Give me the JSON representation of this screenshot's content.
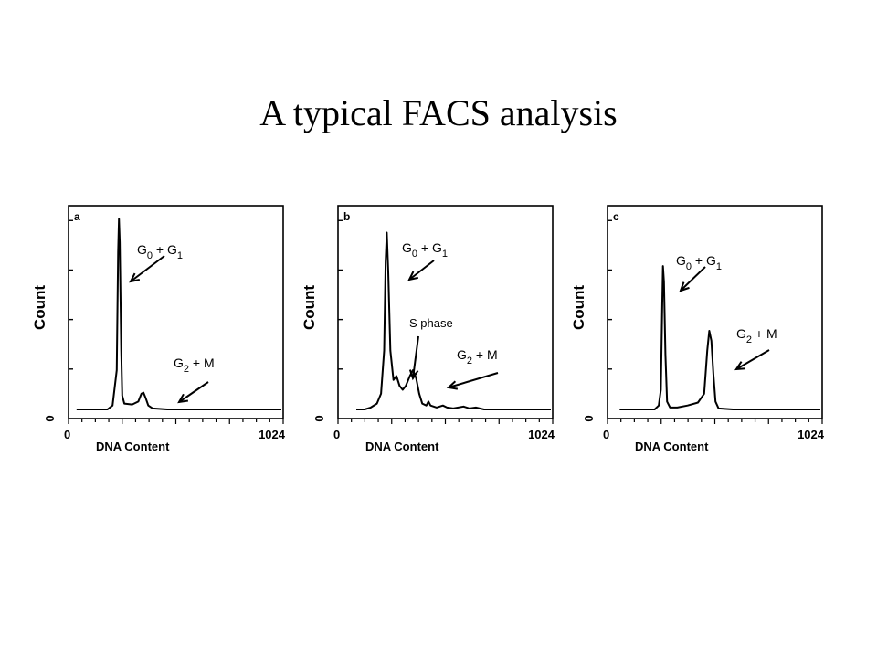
{
  "slide": {
    "title": "A typical FACS analysis"
  },
  "chart_data": [
    {
      "type": "line",
      "panel": "a",
      "xlabel": "DNA Content",
      "ylabel": "Count",
      "x_ticks": [
        "0",
        "1024"
      ],
      "y_ticks": [
        "0"
      ],
      "xlim": [
        0,
        1024
      ],
      "ylim": [
        0,
        100
      ],
      "points": [
        [
          30,
          0
        ],
        [
          180,
          0
        ],
        [
          205,
          2
        ],
        [
          225,
          20
        ],
        [
          232,
          80
        ],
        [
          236,
          97
        ],
        [
          240,
          85
        ],
        [
          247,
          30
        ],
        [
          252,
          7
        ],
        [
          262,
          3
        ],
        [
          300,
          2.5
        ],
        [
          330,
          4
        ],
        [
          345,
          8
        ],
        [
          355,
          8.5
        ],
        [
          365,
          6
        ],
        [
          378,
          2
        ],
        [
          400,
          0.5
        ],
        [
          470,
          0
        ],
        [
          1024,
          0
        ]
      ],
      "annotations": [
        {
          "text": "G",
          "sub": "0",
          "rest": " + G",
          "sub2": "1",
          "tx": 300,
          "ty": 73
        },
        {
          "text": "G",
          "sub": "2",
          "rest": " + M",
          "tx": 380,
          "ty": 19
        }
      ]
    },
    {
      "type": "line",
      "panel": "b",
      "xlabel": "DNA Content",
      "ylabel": "Count",
      "x_ticks": [
        "0",
        "1024"
      ],
      "y_ticks": [
        "0"
      ],
      "xlim": [
        0,
        1024
      ],
      "ylim": [
        0,
        100
      ],
      "points": [
        [
          80,
          0
        ],
        [
          120,
          0
        ],
        [
          150,
          1
        ],
        [
          180,
          3
        ],
        [
          200,
          8
        ],
        [
          215,
          30
        ],
        [
          222,
          75
        ],
        [
          228,
          90
        ],
        [
          235,
          70
        ],
        [
          245,
          30
        ],
        [
          260,
          15
        ],
        [
          275,
          17
        ],
        [
          290,
          12
        ],
        [
          305,
          10
        ],
        [
          320,
          12
        ],
        [
          340,
          17
        ],
        [
          355,
          20
        ],
        [
          370,
          16
        ],
        [
          385,
          8
        ],
        [
          400,
          3
        ],
        [
          420,
          2
        ],
        [
          430,
          4
        ],
        [
          440,
          2
        ],
        [
          470,
          1
        ],
        [
          500,
          2
        ],
        [
          520,
          1
        ],
        [
          550,
          0.5
        ],
        [
          600,
          1.5
        ],
        [
          630,
          0.5
        ],
        [
          660,
          1
        ],
        [
          700,
          0
        ],
        [
          1024,
          0
        ]
      ],
      "annotations": [
        {
          "text": "G",
          "sub": "0",
          "rest": " + G",
          "sub2": "1",
          "tx": 300,
          "ty": 76
        },
        {
          "text": "S phase",
          "tx": 300,
          "ty": 38
        },
        {
          "text": "G",
          "sub": "2",
          "rest": " + M",
          "tx": 540,
          "ty": 25
        }
      ]
    },
    {
      "type": "line",
      "panel": "c",
      "xlabel": "DNA Content",
      "ylabel": "Count",
      "x_ticks": [
        "0",
        "1024"
      ],
      "y_ticks": [
        "0"
      ],
      "xlim": [
        0,
        1024
      ],
      "ylim": [
        0,
        100
      ],
      "points": [
        [
          50,
          0
        ],
        [
          220,
          0
        ],
        [
          240,
          2
        ],
        [
          250,
          10
        ],
        [
          256,
          50
        ],
        [
          260,
          73
        ],
        [
          265,
          65
        ],
        [
          272,
          28
        ],
        [
          280,
          4
        ],
        [
          295,
          1
        ],
        [
          330,
          1
        ],
        [
          380,
          2
        ],
        [
          430,
          3.5
        ],
        [
          460,
          8
        ],
        [
          475,
          30
        ],
        [
          485,
          40
        ],
        [
          495,
          35
        ],
        [
          505,
          18
        ],
        [
          515,
          4
        ],
        [
          530,
          0.5
        ],
        [
          600,
          0
        ],
        [
          1024,
          0
        ]
      ],
      "annotations": [
        {
          "text": "G",
          "sub": "0",
          "rest": " + G",
          "sub2": "1",
          "tx": 440,
          "ty": 70
        },
        {
          "text": "G",
          "sub": "2",
          "rest": " + M",
          "tx": 580,
          "ty": 34
        }
      ]
    }
  ]
}
